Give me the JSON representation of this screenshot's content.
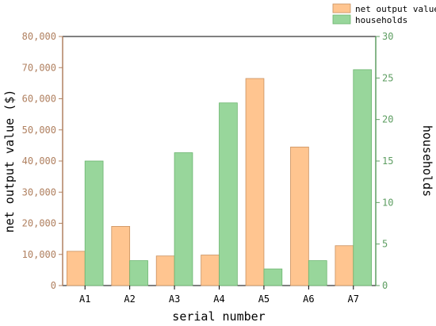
{
  "chart_data": {
    "type": "bar",
    "categories": [
      "A1",
      "A2",
      "A3",
      "A4",
      "A5",
      "A6",
      "A7"
    ],
    "xlabel": "serial number",
    "series": [
      {
        "name": "net output value",
        "axis": "left",
        "color": "#FFC590",
        "stroke": "#C9915F",
        "values": [
          11000,
          19000,
          9500,
          9800,
          66500,
          44500,
          12800
        ]
      },
      {
        "name": "households",
        "axis": "right",
        "color": "#98D69B",
        "stroke": "#6BB56F",
        "values": [
          15,
          3,
          16,
          22,
          2,
          3,
          26
        ]
      }
    ],
    "y_left": {
      "label": "net output value ($)",
      "ylim": [
        0,
        80000
      ],
      "ticks": [
        "0",
        "10,000",
        "20,000",
        "30,000",
        "40,000",
        "50,000",
        "60,000",
        "70,000",
        "80,000"
      ],
      "color": "#B08060"
    },
    "y_right": {
      "label": "households",
      "ylim": [
        0,
        30
      ],
      "ticks": [
        "0",
        "5",
        "10",
        "15",
        "20",
        "25",
        "30"
      ],
      "color": "#5E9E62"
    },
    "legend_position": "top-right",
    "grid": false
  }
}
